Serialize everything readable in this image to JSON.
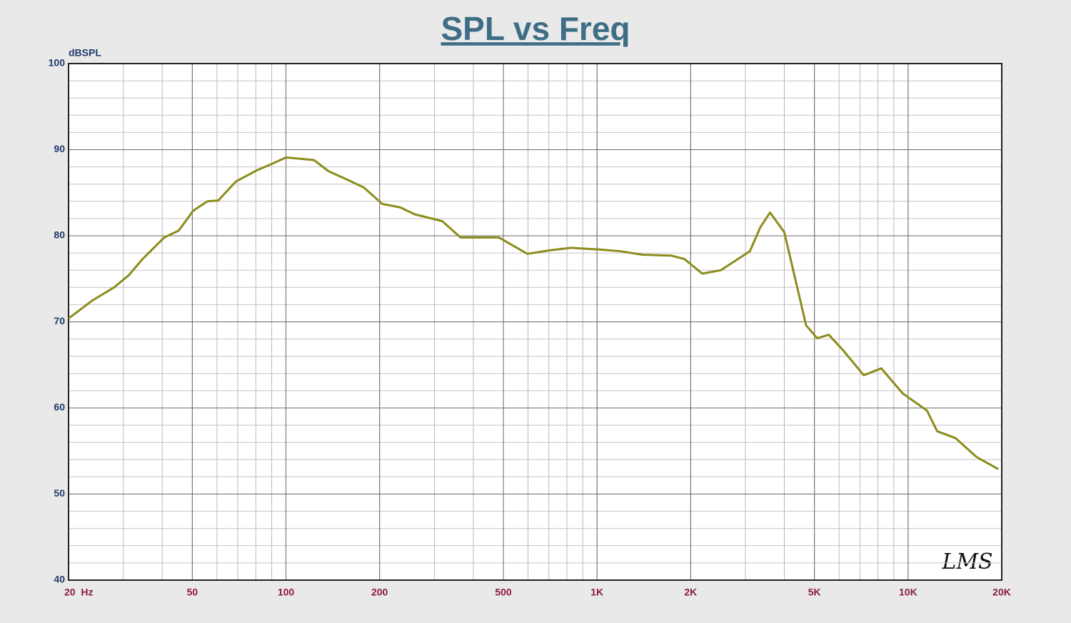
{
  "chart_data": {
    "type": "line",
    "title": "SPL vs Freq",
    "ylabel": "dBSPL",
    "watermark": "LMS",
    "xscale": "log",
    "grid": true,
    "xlim": [
      20,
      20000
    ],
    "ylim": [
      40,
      100
    ],
    "xticks": [
      {
        "value": 20,
        "label": "20  Hz"
      },
      50,
      100,
      200,
      500,
      {
        "value": 1000,
        "label": "1K"
      },
      {
        "value": 2000,
        "label": "2K"
      },
      {
        "value": 5000,
        "label": "5K"
      },
      {
        "value": 10000,
        "label": "10K"
      },
      {
        "value": 20000,
        "label": "20K"
      }
    ],
    "yticks": [
      40,
      50,
      60,
      70,
      80,
      90,
      100
    ],
    "x": [
      20,
      23.9,
      28,
      31.2,
      34.6,
      40.6,
      45.2,
      50.3,
      55.9,
      60.6,
      69,
      80.6,
      89.4,
      100,
      123,
      137,
      160,
      178,
      204,
      233,
      259,
      318,
      364,
      484,
      597,
      702,
      823,
      1020,
      1190,
      1400,
      1730,
      1910,
      2180,
      2500,
      3100,
      3350,
      3600,
      4000,
      4700,
      5100,
      5560,
      6180,
      7200,
      8200,
      9600,
      11500,
      12400,
      14200,
      16600,
      19500
    ],
    "series": [
      {
        "color": "#8c8c1c",
        "values": [
          70.4,
          72.5,
          74.0,
          75.4,
          77.3,
          79.8,
          80.6,
          82.9,
          84.0,
          84.1,
          86.3,
          87.6,
          88.3,
          89.1,
          88.8,
          87.5,
          86.4,
          85.6,
          83.7,
          83.3,
          82.5,
          81.7,
          79.8,
          79.8,
          77.9,
          78.3,
          78.6,
          78.4,
          78.2,
          77.8,
          77.7,
          77.3,
          75.6,
          76.0,
          78.2,
          81.0,
          82.7,
          80.4,
          69.6,
          68.1,
          68.5,
          66.7,
          63.8,
          64.6,
          61.7,
          59.7,
          57.3,
          56.5,
          54.3,
          52.9
        ]
      }
    ]
  }
}
